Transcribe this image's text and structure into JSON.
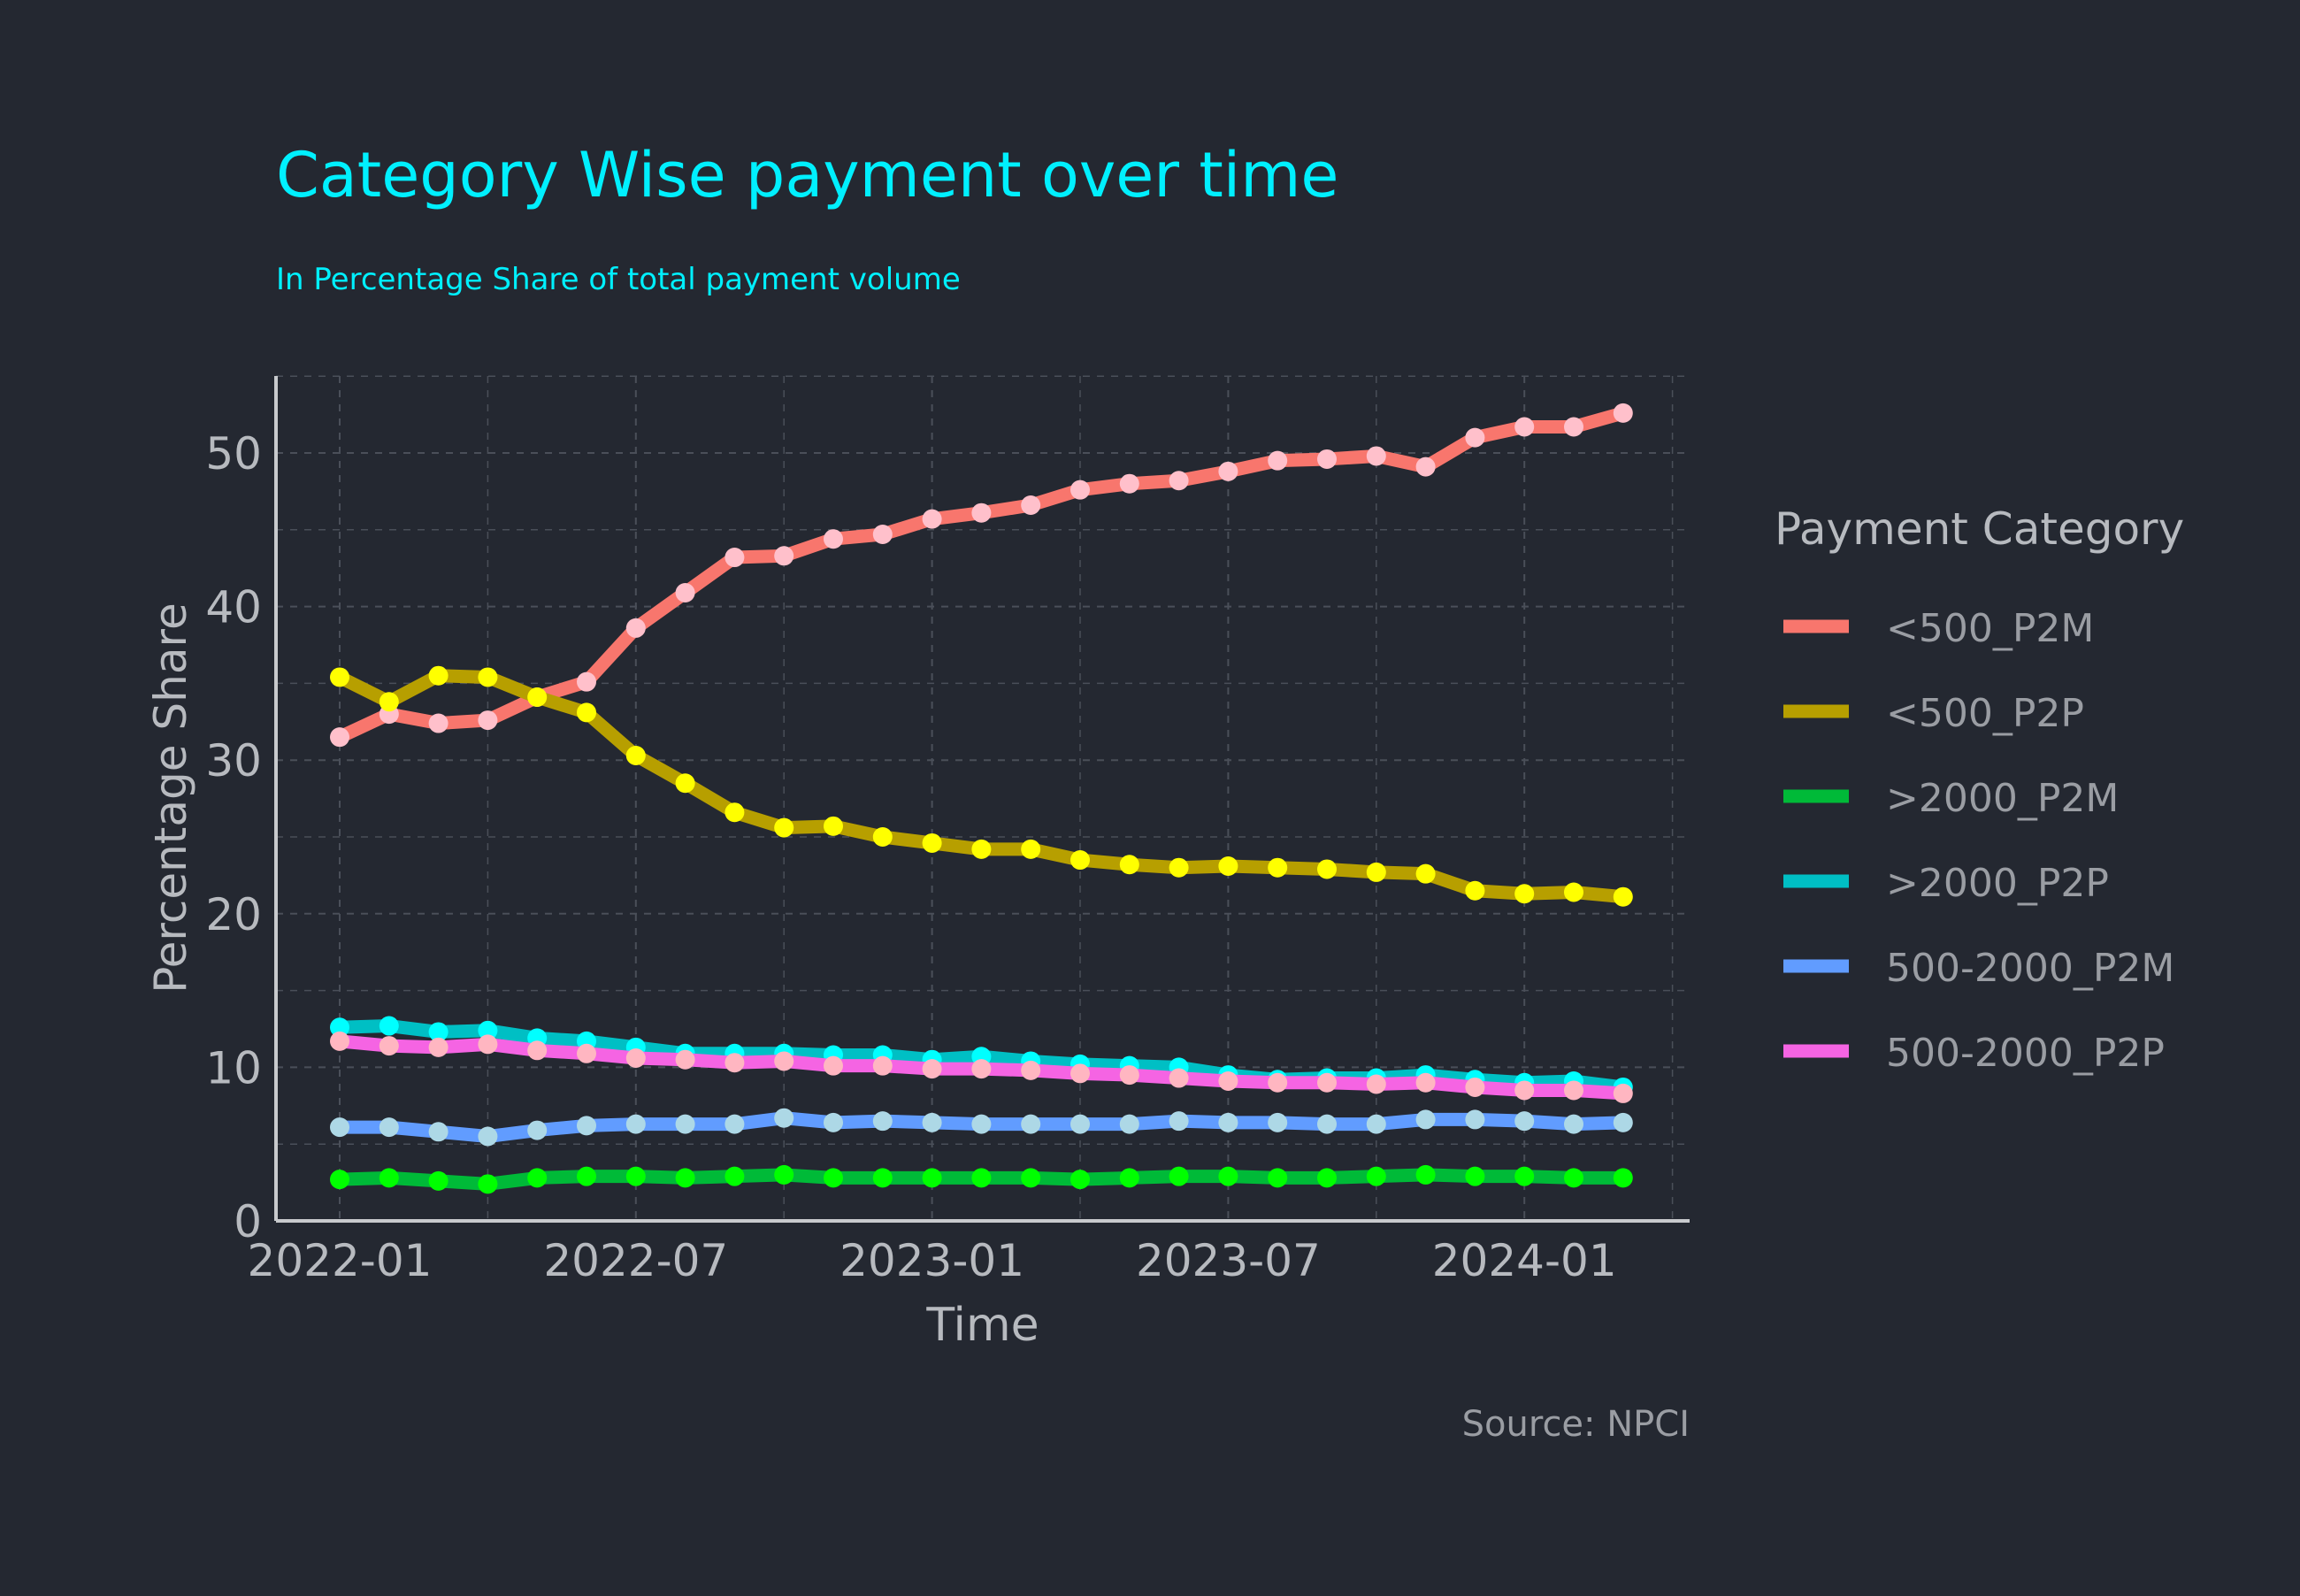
{
  "chart_data": {
    "type": "line",
    "title": "Category Wise payment over time",
    "subtitle": "In Percentage Share of total payment volume",
    "xlabel": "Time",
    "ylabel": "Percentage Share",
    "caption": "Source: NPCI",
    "legend_title": "Payment Category",
    "legend_position": "right",
    "grid": true,
    "x_ticks": [
      "2022-01",
      "2022-07",
      "2023-01",
      "2023-07",
      "2024-01"
    ],
    "y_ticks": [
      0,
      10,
      20,
      30,
      40,
      50
    ],
    "ylim": [
      0,
      55
    ],
    "x": [
      "2022-01",
      "2022-02",
      "2022-03",
      "2022-04",
      "2022-05",
      "2022-06",
      "2022-07",
      "2022-08",
      "2022-09",
      "2022-10",
      "2022-11",
      "2022-12",
      "2023-01",
      "2023-02",
      "2023-03",
      "2023-04",
      "2023-05",
      "2023-06",
      "2023-07",
      "2023-08",
      "2023-09",
      "2023-10",
      "2023-11",
      "2023-12",
      "2024-01",
      "2024-02",
      "2024-03"
    ],
    "series": [
      {
        "name": "<500_P2M",
        "line_color": "#F8766D",
        "point_color": "#FFC0CB",
        "values": [
          31.5,
          33.0,
          32.4,
          32.6,
          34.1,
          35.1,
          38.6,
          40.9,
          43.2,
          43.3,
          44.4,
          44.7,
          45.7,
          46.1,
          46.6,
          47.6,
          48.0,
          48.2,
          48.8,
          49.5,
          49.6,
          49.8,
          49.1,
          51.0,
          51.7,
          51.7,
          52.6
        ]
      },
      {
        "name": "<500_P2P",
        "line_color": "#B79F00",
        "point_color": "#FFFF00",
        "values": [
          35.4,
          33.8,
          35.5,
          35.4,
          34.1,
          33.1,
          30.3,
          28.5,
          26.6,
          25.6,
          25.7,
          25.0,
          24.6,
          24.2,
          24.2,
          23.5,
          23.2,
          23.0,
          23.1,
          23.0,
          22.9,
          22.7,
          22.6,
          21.5,
          21.3,
          21.4,
          21.1
        ]
      },
      {
        "name": ">2000_P2M",
        "line_color": "#00BA38",
        "point_color": "#00FF00",
        "values": [
          2.7,
          2.8,
          2.6,
          2.4,
          2.8,
          2.9,
          2.9,
          2.8,
          2.9,
          3.0,
          2.8,
          2.8,
          2.8,
          2.8,
          2.8,
          2.7,
          2.8,
          2.9,
          2.9,
          2.8,
          2.8,
          2.9,
          3.0,
          2.9,
          2.9,
          2.8,
          2.8
        ]
      },
      {
        "name": ">2000_P2P",
        "line_color": "#00BFC4",
        "point_color": "#00FFFF",
        "values": [
          12.6,
          12.7,
          12.3,
          12.4,
          11.9,
          11.7,
          11.3,
          10.9,
          10.9,
          10.9,
          10.8,
          10.8,
          10.5,
          10.7,
          10.4,
          10.2,
          10.1,
          10.0,
          9.5,
          9.2,
          9.3,
          9.3,
          9.5,
          9.2,
          9.0,
          9.1,
          8.7
        ]
      },
      {
        "name": "500-2000_P2M",
        "line_color": "#619CFF",
        "point_color": "#ADD8E6",
        "values": [
          6.1,
          6.1,
          5.8,
          5.5,
          5.9,
          6.2,
          6.3,
          6.3,
          6.3,
          6.7,
          6.4,
          6.5,
          6.4,
          6.3,
          6.3,
          6.3,
          6.3,
          6.5,
          6.4,
          6.4,
          6.3,
          6.3,
          6.6,
          6.6,
          6.5,
          6.3,
          6.4
        ]
      },
      {
        "name": "500-2000_P2P",
        "line_color": "#F564E3",
        "point_color": "#FFB6C1",
        "values": [
          11.7,
          11.4,
          11.3,
          11.5,
          11.1,
          10.9,
          10.6,
          10.5,
          10.3,
          10.4,
          10.1,
          10.1,
          9.9,
          9.9,
          9.8,
          9.6,
          9.5,
          9.3,
          9.1,
          9.0,
          9.0,
          8.9,
          9.0,
          8.7,
          8.5,
          8.5,
          8.3
        ]
      }
    ]
  },
  "colors": {
    "background": "#242831",
    "title": "#00F0FF",
    "text": "#B7BABF",
    "grid": "#4A4F59",
    "axis": "#C8CACD"
  }
}
